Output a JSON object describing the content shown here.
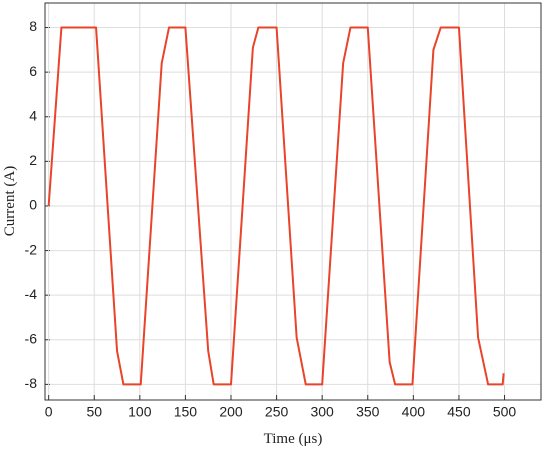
{
  "chart_data": {
    "type": "line",
    "x_label": "Time (μs)",
    "y_label": "Current (A)",
    "x": [
      0,
      14,
      52,
      75,
      82,
      101,
      124,
      132,
      150,
      175,
      181,
      200,
      224,
      230,
      250,
      272,
      282,
      300,
      323,
      331,
      350,
      374,
      380,
      399,
      422,
      430,
      450,
      471,
      482,
      498,
      499
    ],
    "series": [
      {
        "color": "#e8442a",
        "values": [
          0,
          8,
          8,
          -6.5,
          -8,
          -8,
          6.4,
          8,
          8,
          -6.5,
          -8,
          -8,
          7.1,
          8,
          8,
          -5.9,
          -8,
          -8,
          6.4,
          8,
          8,
          -7,
          -8,
          -8,
          7,
          8,
          8,
          -5.9,
          -8,
          -8,
          -7.5
        ]
      }
    ],
    "xlim": [
      -4,
      540
    ],
    "ylim": [
      -8.7,
      9.1
    ],
    "xticks": [
      0,
      50,
      100,
      150,
      200,
      250,
      300,
      350,
      400,
      450,
      500
    ],
    "yticks": [
      -8,
      -6,
      -4,
      -2,
      0,
      2,
      4,
      6,
      8
    ],
    "grid": true
  }
}
